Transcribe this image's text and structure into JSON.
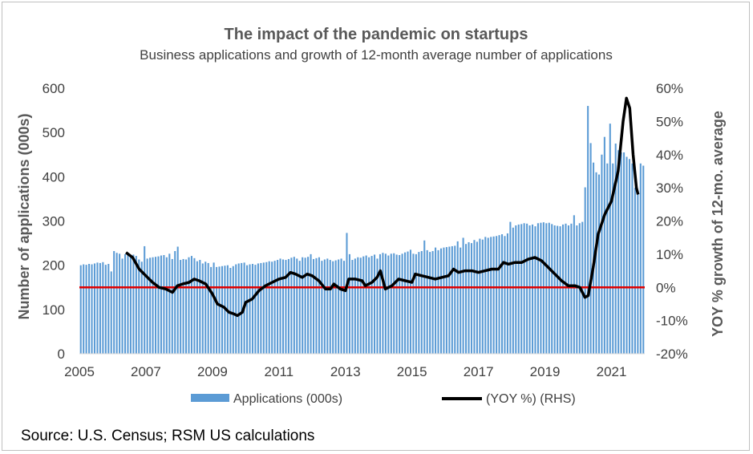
{
  "chart_data": {
    "type": "bar",
    "title": "The impact of the pandemic on startups",
    "subtitle": "Business applications and growth of 12-month average number of applications",
    "ylabel": "Number of applications (000s)",
    "y2label": "YOY % growth of 12-mo. average",
    "x_ticks": [
      "2005",
      "2007",
      "2009",
      "2011",
      "2013",
      "2015",
      "2017",
      "2019",
      "2021"
    ],
    "y_ticks": [
      "0",
      "100",
      "200",
      "300",
      "400",
      "500",
      "600"
    ],
    "y2_ticks": [
      "-20%",
      "-10%",
      "0%",
      "10%",
      "20%",
      "30%",
      "40%",
      "50%",
      "60%"
    ],
    "ylim": [
      0,
      600
    ],
    "y2lim": [
      -20,
      60
    ],
    "xlim": [
      2005.0,
      2022.0
    ],
    "grid": false,
    "legend_position": "bottom",
    "reference_line": {
      "axis": "y2",
      "value": 0,
      "color": "#e00000"
    },
    "source": "Source: U.S. Census; RSM US calculations",
    "series": [
      {
        "name": "Applications (000s)",
        "type": "bar",
        "axis": "y",
        "color": "#5b9bd5",
        "start": "2005-01",
        "frequency": "monthly",
        "values": [
          200,
          202,
          201,
          203,
          202,
          204,
          206,
          205,
          207,
          201,
          203,
          186,
          232,
          228,
          226,
          215,
          225,
          222,
          219,
          224,
          221,
          213,
          208,
          243,
          215,
          217,
          218,
          219,
          220,
          222,
          223,
          218,
          226,
          214,
          232,
          242,
          212,
          214,
          213,
          218,
          221,
          216,
          209,
          212,
          204,
          208,
          205,
          196,
          206,
          196,
          197,
          198,
          199,
          200,
          194,
          198,
          202,
          204,
          205,
          206,
          200,
          202,
          203,
          201,
          204,
          205,
          206,
          207,
          209,
          208,
          210,
          212,
          215,
          213,
          212,
          214,
          217,
          219,
          215,
          210,
          218,
          217,
          219,
          225,
          214,
          216,
          218,
          210,
          213,
          215,
          212,
          209,
          211,
          213,
          215,
          210,
          273,
          225,
          212,
          215,
          218,
          217,
          220,
          222,
          218,
          221,
          224,
          215,
          225,
          228,
          226,
          222,
          226,
          227,
          224,
          223,
          226,
          229,
          231,
          235,
          226,
          225,
          230,
          232,
          256,
          234,
          230,
          232,
          240,
          234,
          238,
          240,
          241,
          242,
          243,
          244,
          254,
          240,
          262,
          248,
          252,
          250,
          257,
          253,
          260,
          258,
          264,
          262,
          264,
          265,
          266,
          268,
          270,
          266,
          272,
          298,
          285,
          290,
          292,
          293,
          295,
          294,
          290,
          292,
          288,
          295,
          296,
          297,
          295,
          296,
          293,
          290,
          289,
          288,
          292,
          294,
          290,
          294,
          313,
          290,
          295,
          298,
          376,
          560,
          476,
          432,
          410,
          405,
          450,
          490,
          430,
          520,
          430,
          475,
          460,
          455,
          455,
          445,
          440,
          430,
          375,
          365,
          430,
          425
        ],
        "end": "2021-09"
      },
      {
        "name": "(YOY %) (RHS)",
        "type": "line",
        "axis": "y2",
        "color": "#000000",
        "points": [
          [
            2006.4,
            10.5
          ],
          [
            2006.6,
            9.0
          ],
          [
            2006.8,
            5.5
          ],
          [
            2007.0,
            3.5
          ],
          [
            2007.2,
            1.5
          ],
          [
            2007.4,
            0.0
          ],
          [
            2007.6,
            -0.5
          ],
          [
            2007.8,
            -1.5
          ],
          [
            2007.95,
            0.5
          ],
          [
            2008.1,
            1.0
          ],
          [
            2008.3,
            1.5
          ],
          [
            2008.45,
            2.5
          ],
          [
            2008.6,
            2.0
          ],
          [
            2008.8,
            1.0
          ],
          [
            2009.0,
            -2.0
          ],
          [
            2009.15,
            -5.0
          ],
          [
            2009.35,
            -6.0
          ],
          [
            2009.5,
            -7.5
          ],
          [
            2009.65,
            -8.0
          ],
          [
            2009.75,
            -8.5
          ],
          [
            2009.9,
            -7.5
          ],
          [
            2010.0,
            -4.5
          ],
          [
            2010.2,
            -3.5
          ],
          [
            2010.4,
            -1.0
          ],
          [
            2010.6,
            0.5
          ],
          [
            2010.8,
            1.5
          ],
          [
            2011.0,
            2.5
          ],
          [
            2011.2,
            3.0
          ],
          [
            2011.35,
            4.5
          ],
          [
            2011.5,
            4.0
          ],
          [
            2011.7,
            3.0
          ],
          [
            2011.85,
            4.0
          ],
          [
            2012.0,
            3.5
          ],
          [
            2012.2,
            2.0
          ],
          [
            2012.4,
            -0.5
          ],
          [
            2012.55,
            -0.5
          ],
          [
            2012.65,
            1.0
          ],
          [
            2012.85,
            -0.5
          ],
          [
            2013.0,
            -1.0
          ],
          [
            2013.1,
            2.5
          ],
          [
            2013.3,
            2.5
          ],
          [
            2013.5,
            2.0
          ],
          [
            2013.6,
            0.5
          ],
          [
            2013.8,
            1.5
          ],
          [
            2013.95,
            3.0
          ],
          [
            2014.05,
            5.0
          ],
          [
            2014.2,
            -0.5
          ],
          [
            2014.4,
            0.5
          ],
          [
            2014.6,
            2.5
          ],
          [
            2014.8,
            2.0
          ],
          [
            2015.0,
            1.5
          ],
          [
            2015.1,
            4.0
          ],
          [
            2015.3,
            3.5
          ],
          [
            2015.5,
            3.0
          ],
          [
            2015.7,
            2.5
          ],
          [
            2015.9,
            3.0
          ],
          [
            2016.1,
            3.5
          ],
          [
            2016.25,
            5.5
          ],
          [
            2016.4,
            4.5
          ],
          [
            2016.6,
            5.0
          ],
          [
            2016.8,
            5.0
          ],
          [
            2017.0,
            4.5
          ],
          [
            2017.2,
            5.0
          ],
          [
            2017.4,
            5.5
          ],
          [
            2017.6,
            5.5
          ],
          [
            2017.75,
            7.5
          ],
          [
            2017.9,
            7.0
          ],
          [
            2018.1,
            7.5
          ],
          [
            2018.3,
            7.5
          ],
          [
            2018.5,
            8.5
          ],
          [
            2018.7,
            9.0
          ],
          [
            2018.9,
            8.0
          ],
          [
            2019.1,
            6.0
          ],
          [
            2019.3,
            4.0
          ],
          [
            2019.5,
            2.0
          ],
          [
            2019.7,
            0.5
          ],
          [
            2019.9,
            0.5
          ],
          [
            2020.05,
            0.0
          ],
          [
            2020.2,
            -3.0
          ],
          [
            2020.3,
            -2.5
          ],
          [
            2020.45,
            6.0
          ],
          [
            2020.6,
            16.0
          ],
          [
            2020.8,
            22.0
          ],
          [
            2021.0,
            26.0
          ],
          [
            2021.2,
            35.0
          ],
          [
            2021.35,
            50.0
          ],
          [
            2021.45,
            57.0
          ],
          [
            2021.55,
            54.0
          ],
          [
            2021.65,
            40.0
          ],
          [
            2021.75,
            30.0
          ],
          [
            2021.8,
            28.0
          ]
        ]
      }
    ]
  }
}
